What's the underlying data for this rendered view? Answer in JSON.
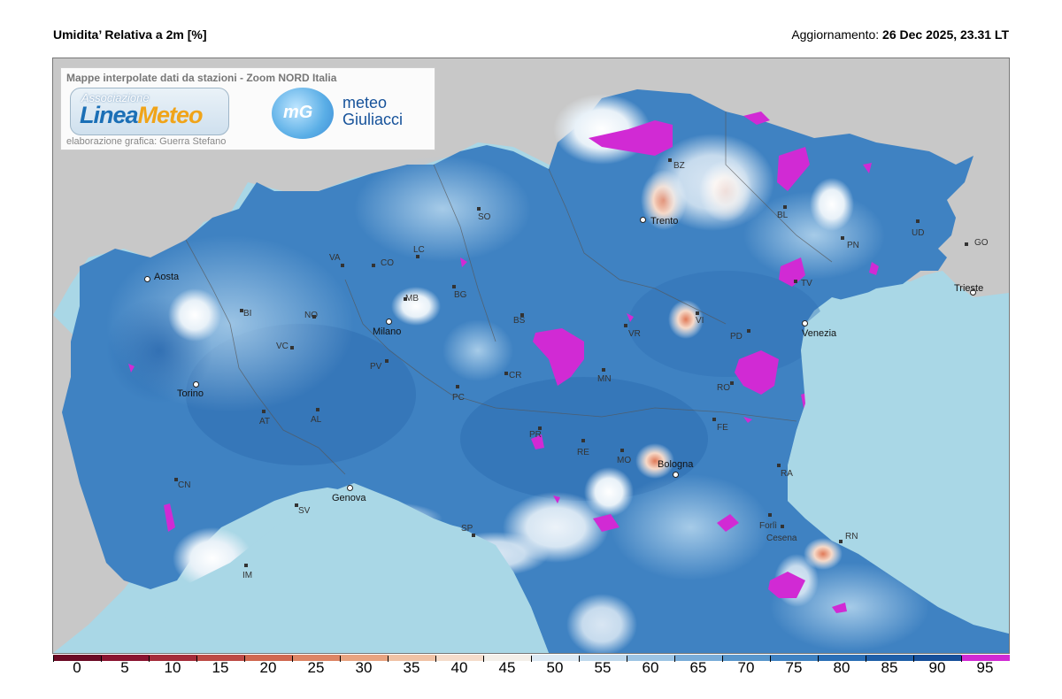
{
  "header": {
    "title": "Umidita’ Relativa a 2m [%]",
    "update_label": "Aggiornamento:",
    "update_value": "26 Dec 2025, 23.31 LT"
  },
  "logo": {
    "heading": "Mappe interpolate dati da stazioni - Zoom NORD Italia",
    "brand_top": "Associazione",
    "brand_main_a": "Linea",
    "brand_main_b": "Meteo",
    "credit": "elaborazione grafica: Guerra Stefano",
    "mg_mark": "mG",
    "mg_line1": "meteo",
    "mg_line2": "Giuliacci"
  },
  "cities": [
    {
      "id": "aosta",
      "label": "Aosta"
    },
    {
      "id": "torino",
      "label": "Torino"
    },
    {
      "id": "milano",
      "label": "Milano"
    },
    {
      "id": "genova",
      "label": "Genova"
    },
    {
      "id": "trento",
      "label": "Trento"
    },
    {
      "id": "venezia",
      "label": "Venezia"
    },
    {
      "id": "bologna",
      "label": "Bologna"
    },
    {
      "id": "trieste",
      "label": "Trieste"
    }
  ],
  "provinces": [
    "BZ",
    "BL",
    "SO",
    "VA",
    "CO",
    "LC",
    "BG",
    "MB",
    "BI",
    "NO",
    "VC",
    "BS",
    "VR",
    "VI",
    "TV",
    "PN",
    "UD",
    "GO",
    "PD",
    "RO",
    "MN",
    "CR",
    "PV",
    "PC",
    "AL",
    "AT",
    "CN",
    "SV",
    "IM",
    "SP",
    "PR",
    "RE",
    "MO",
    "FE",
    "RA",
    "Forlì",
    "Cesena",
    "RN"
  ],
  "colorbar": {
    "labels": [
      "0",
      "5",
      "10",
      "15",
      "20",
      "25",
      "30",
      "35",
      "40",
      "45",
      "50",
      "55",
      "60",
      "65",
      "70",
      "75",
      "80",
      "85",
      "90",
      "95"
    ],
    "colors": [
      "#6b0a25",
      "#8a1430",
      "#a52c3a",
      "#bd4a45",
      "#d06850",
      "#dd8565",
      "#e8a380",
      "#f0c2a5",
      "#f5dccb",
      "#f3efe9",
      "#dce9f3",
      "#bed8ec",
      "#9cc4e4",
      "#79acd8",
      "#5896cc",
      "#3f82c2",
      "#2b6fb6",
      "#1f5fa8",
      "#17509a",
      "#d12ad4"
    ]
  },
  "colors": {
    "sea": "#a9d7e6",
    "land_outside": "#c7c7c7",
    "humidity_base": "#3f82c2",
    "saturation": "#d12ad4"
  }
}
